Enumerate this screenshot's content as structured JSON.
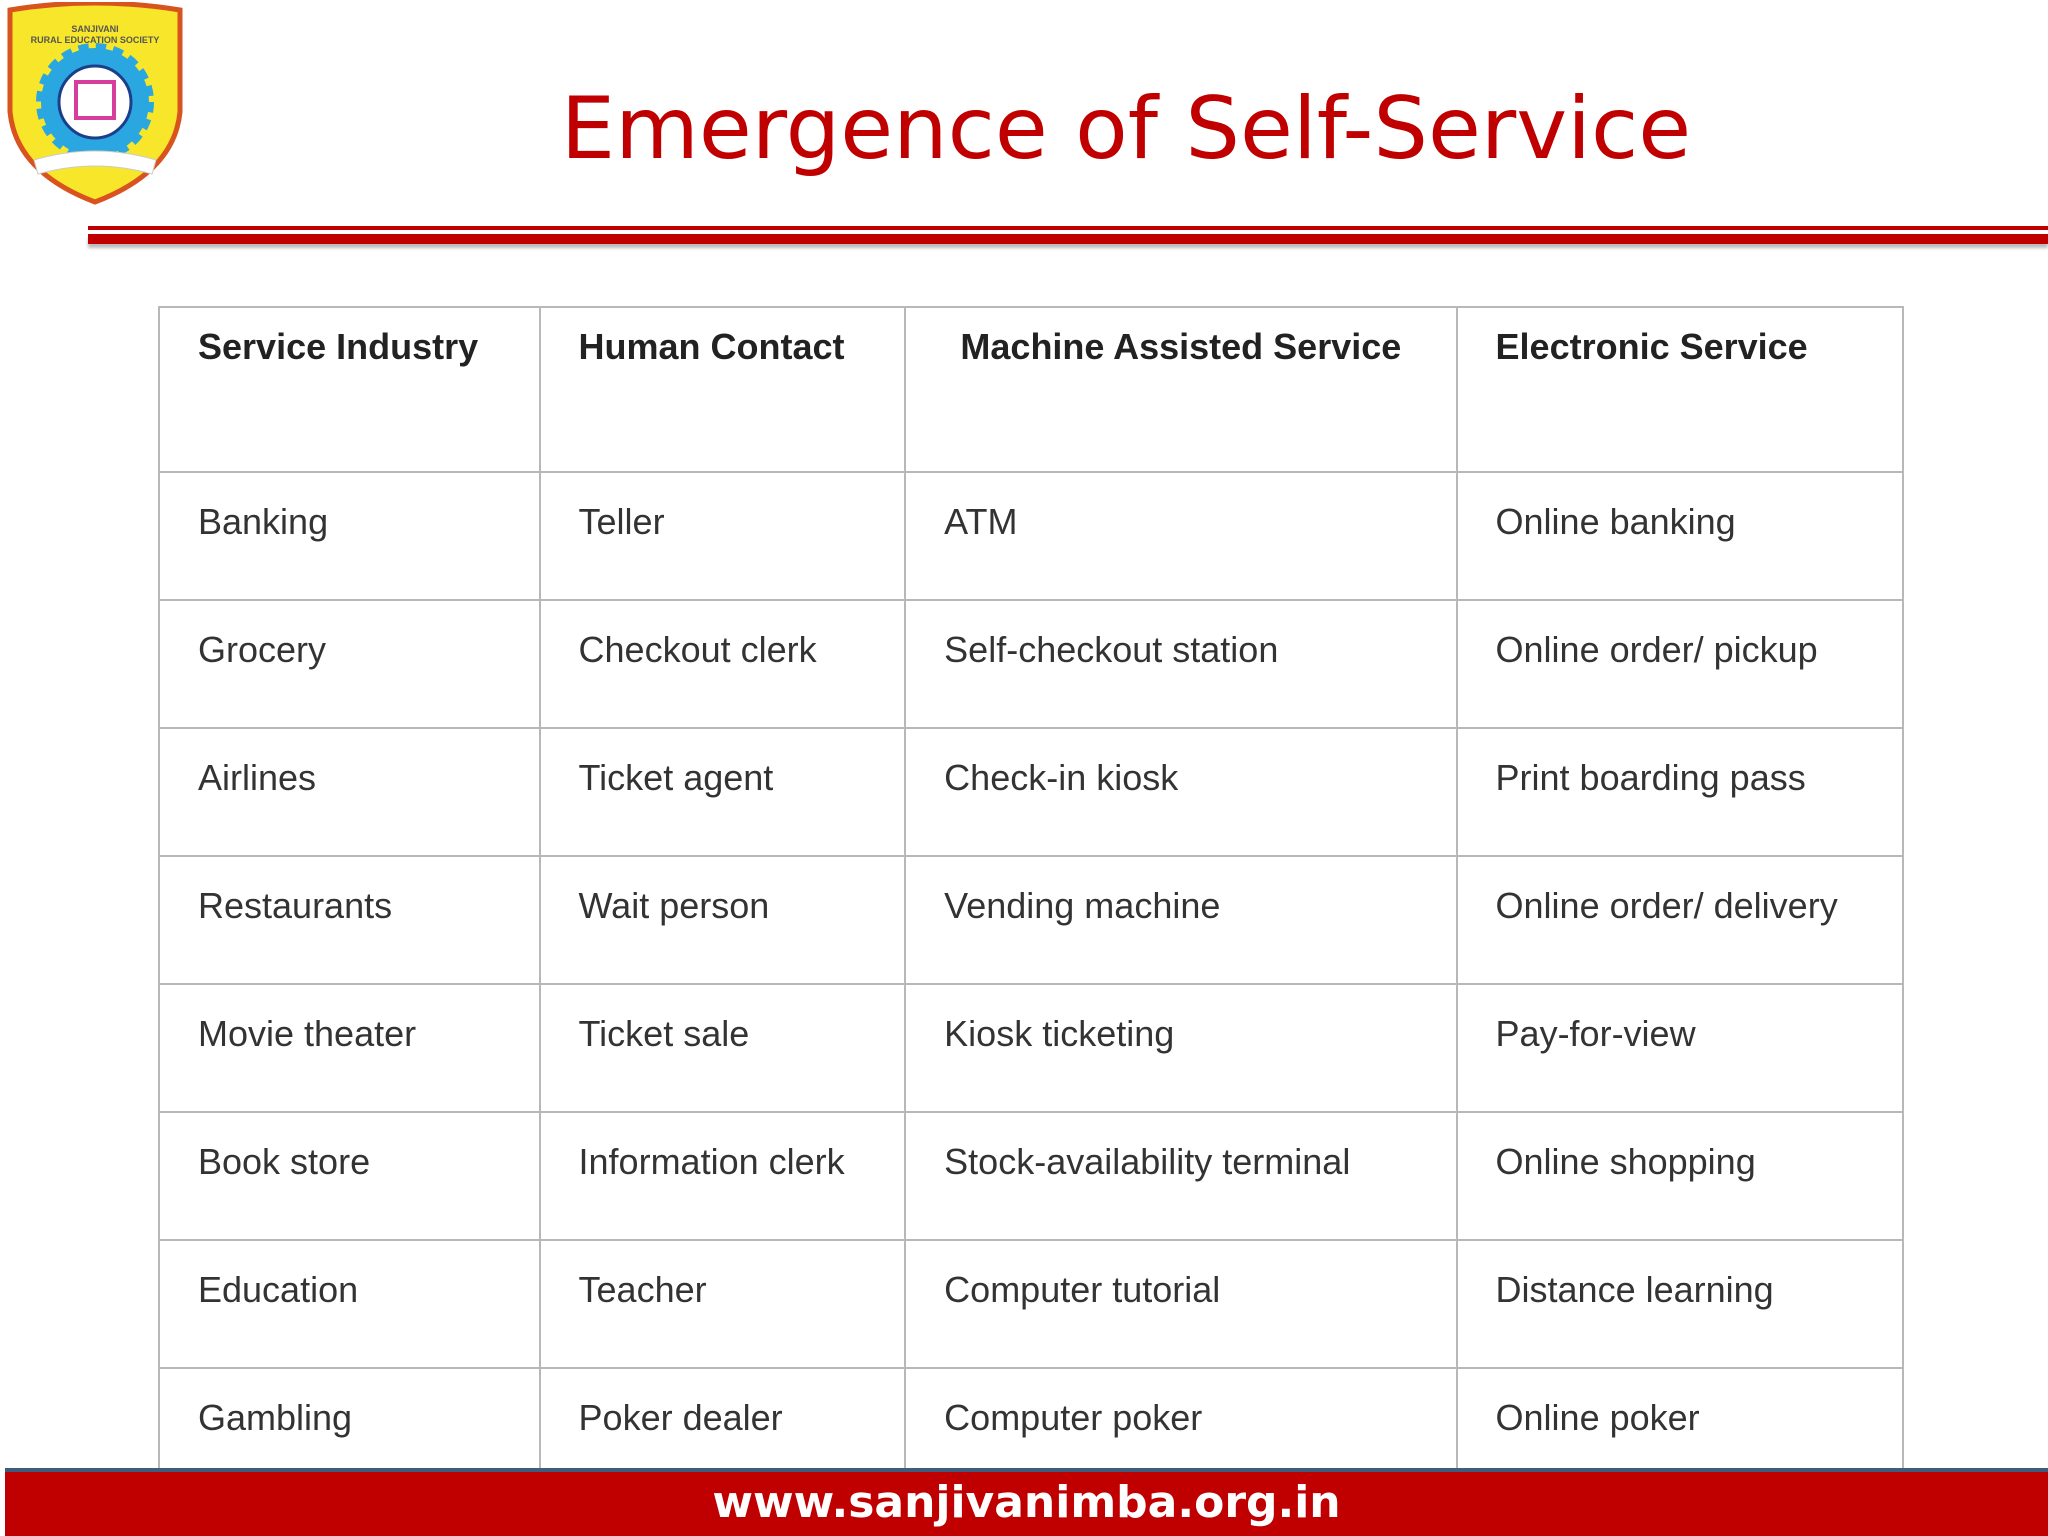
{
  "logo": {
    "text": "SANJIVANI RURAL EDUCATION SOCIETY",
    "colors": {
      "shield": "#f7e629",
      "gear": "#2aa7e0",
      "emblem": "#d63d9c",
      "border": "#d9531e"
    }
  },
  "header": {
    "title": "Emergence of Self-Service",
    "accent": "#c00000"
  },
  "table": {
    "columns": [
      "Service Industry",
      "Human Contact",
      "Machine Assisted Service",
      "Electronic Service"
    ],
    "rows": [
      [
        "Banking",
        "Teller",
        "ATM",
        "Online banking"
      ],
      [
        "Grocery",
        "Checkout clerk",
        "Self-checkout station",
        "Online order/ pickup"
      ],
      [
        "Airlines",
        "Ticket agent",
        "Check-in kiosk",
        "Print boarding pass"
      ],
      [
        "Restaurants",
        "Wait person",
        "Vending machine",
        "Online order/ delivery"
      ],
      [
        "Movie theater",
        "Ticket sale",
        "Kiosk ticketing",
        "Pay-for-view"
      ],
      [
        "Book store",
        "Information clerk",
        "Stock-availability terminal",
        "Online shopping"
      ],
      [
        "Education",
        "Teacher",
        "Computer tutorial",
        "Distance learning"
      ],
      [
        "Gambling",
        "Poker dealer",
        "Computer poker",
        "Online poker"
      ]
    ]
  },
  "footer": {
    "url": "www.sanjivanimba.org.in"
  }
}
